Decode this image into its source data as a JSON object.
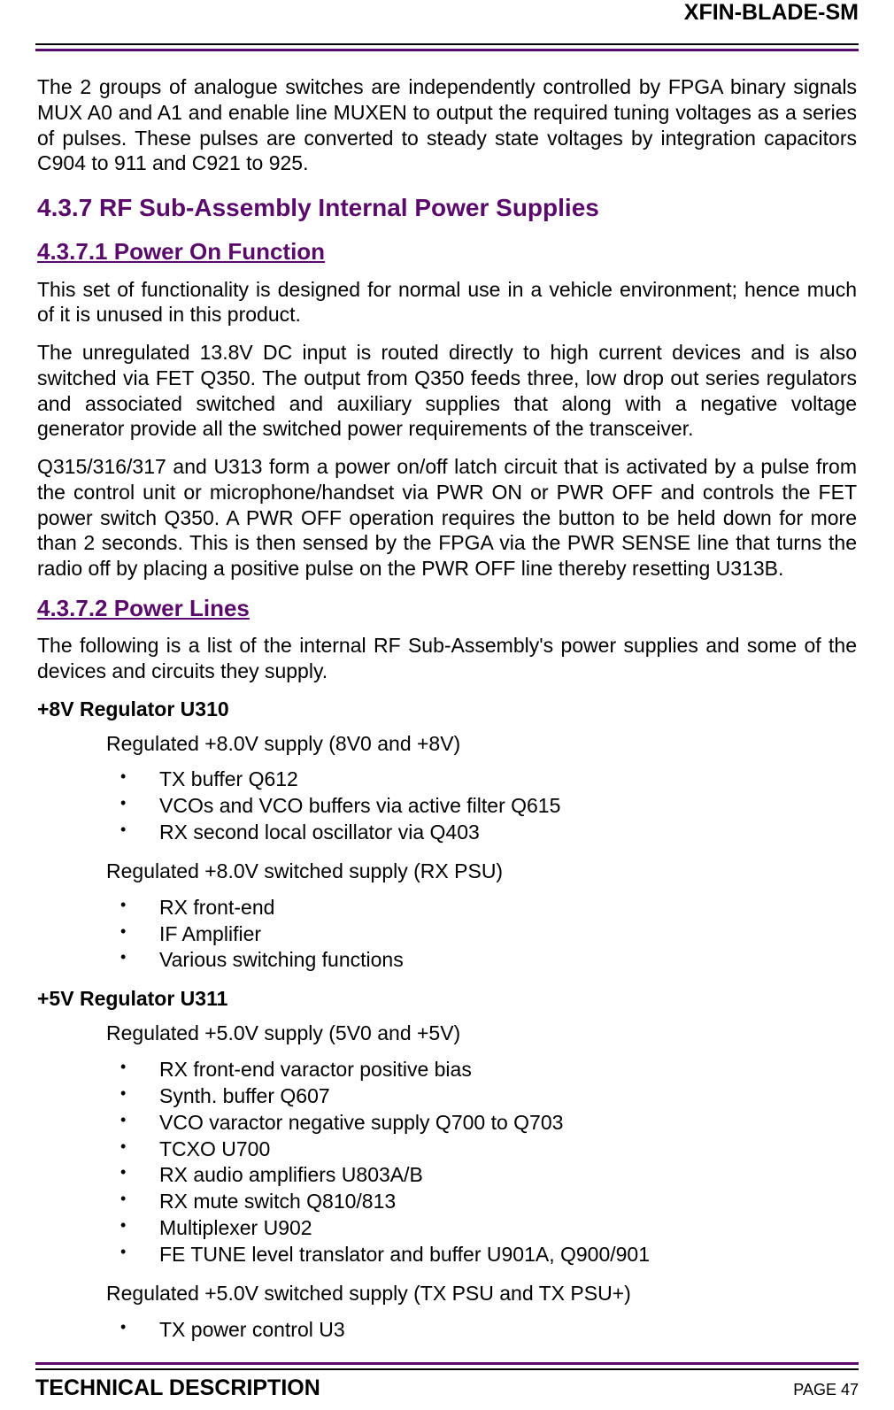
{
  "colors": {
    "accent": "#5a0a6b",
    "rule_black": "#000000",
    "text": "#000000",
    "background": "#ffffff"
  },
  "typography": {
    "body_font": "Arial",
    "body_size_pt": 17,
    "heading_size_pt": 21,
    "subheading_size_pt": 20
  },
  "header": {
    "doc_code": "XFIN-BLADE-SM"
  },
  "body": {
    "intro_para": "The 2 groups of analogue switches are independently controlled by FPGA binary signals MUX A0 and A1 and enable line MUXEN to output the required tuning voltages as a series of pulses. These pulses are converted to steady state voltages by integration capacitors C904 to 911 and C921 to 925.",
    "sec_437": "4.3.7 RF Sub-Assembly Internal Power Supplies",
    "sec_4371": "4.3.7.1 Power On Function",
    "p_4371_a": "This set of functionality is designed for normal use in a vehicle environment; hence much of it is unused in this product.",
    "p_4371_b": "The unregulated 13.8V DC input is routed directly to high current devices and is also switched via FET Q350. The output from Q350 feeds three, low drop out series regulators and associated switched and auxiliary supplies that along with a negative voltage generator provide all the switched power requirements of the transceiver.",
    "p_4371_c": "Q315/316/317 and U313 form a power on/off latch circuit that is activated by a pulse from the control unit or microphone/handset via PWR ON or PWR OFF and controls the FET power switch Q350. A PWR OFF operation requires the button to be held down for more than 2 seconds. This is then sensed by the FPGA via the PWR SENSE line that turns the radio off by placing a positive pulse on the PWR OFF line thereby resetting U313B.",
    "sec_4372": "4.3.7.2 Power Lines",
    "p_4372_a": "The following is a list of the internal RF Sub-Assembly's power supplies and some of the devices and circuits they supply.",
    "reg_8v_title": "+8V Regulator U310",
    "reg_8v_line1": "Regulated +8.0V supply (8V0 and +8V)",
    "reg_8v_list1": [
      "TX buffer Q612",
      "VCOs and VCO buffers via active filter Q615",
      "RX second local oscillator via Q403"
    ],
    "reg_8v_line2": "Regulated +8.0V switched supply (RX PSU)",
    "reg_8v_list2": [
      "RX front-end",
      "IF Amplifier",
      "Various switching functions"
    ],
    "reg_5v_title": "+5V Regulator U311",
    "reg_5v_line1": "Regulated +5.0V supply (5V0 and +5V)",
    "reg_5v_list1": [
      "RX front-end varactor positive bias",
      "Synth. buffer Q607",
      "VCO varactor negative supply Q700 to Q703",
      "TCXO U700",
      "RX audio amplifiers U803A/B",
      "RX mute switch Q810/813",
      "Multiplexer U902",
      "FE TUNE level translator and buffer U901A, Q900/901"
    ],
    "reg_5v_line2": "Regulated +5.0V switched supply (TX PSU and TX PSU+)",
    "reg_5v_list2": [
      "TX power control U3"
    ]
  },
  "footer": {
    "left": "TECHNICAL DESCRIPTION",
    "right": "PAGE 47"
  }
}
